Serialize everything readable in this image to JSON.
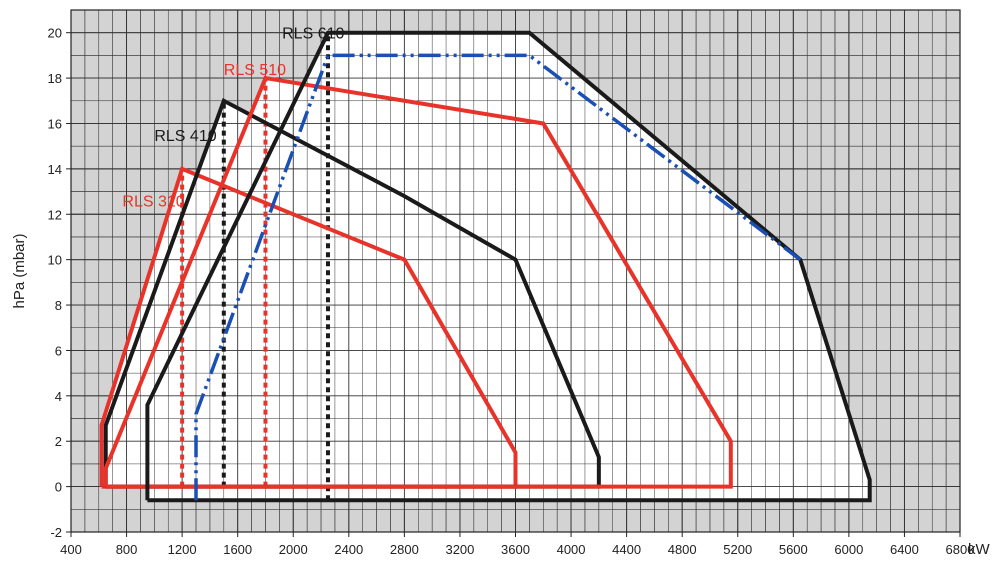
{
  "chart_data": {
    "type": "line",
    "title": "",
    "xlabel": "kW",
    "ylabel": "hPa (mbar)",
    "xlim": [
      400,
      6800
    ],
    "ylim": [
      -2,
      21
    ],
    "x_ticks": [
      400,
      800,
      1200,
      1600,
      2000,
      2400,
      2800,
      3200,
      3600,
      4000,
      4400,
      4800,
      5200,
      5600,
      6000,
      6400,
      6800
    ],
    "y_ticks": [
      -2,
      0,
      2,
      4,
      6,
      8,
      10,
      12,
      14,
      16,
      18,
      20
    ],
    "grid": true,
    "background_color": "#d3d3d3",
    "series": [
      {
        "name": "RLS 310",
        "color": "#e8332a",
        "points": [
          [
            620,
            0
          ],
          [
            620,
            2.7
          ],
          [
            1200,
            14
          ],
          [
            2800,
            10
          ],
          [
            3600,
            1.5
          ],
          [
            3600,
            0
          ],
          [
            620,
            0
          ]
        ],
        "min_output_line": {
          "x": 1200,
          "y": [
            0,
            14
          ],
          "color": "#e8332a"
        }
      },
      {
        "name": "RLS 410",
        "color": "#1a1a1a",
        "points": [
          [
            650,
            0
          ],
          [
            650,
            2.7
          ],
          [
            1500,
            17
          ],
          [
            2800,
            12.8
          ],
          [
            3600,
            10
          ],
          [
            4200,
            1.3
          ],
          [
            4200,
            0
          ],
          [
            650,
            0
          ]
        ],
        "min_output_line": {
          "x": 1500,
          "y": [
            0,
            17
          ],
          "color": "#1a1a1a"
        }
      },
      {
        "name": "RLS 510",
        "color": "#e8332a",
        "points": [
          [
            650,
            0
          ],
          [
            650,
            0.8
          ],
          [
            1800,
            18
          ],
          [
            3800,
            16
          ],
          [
            5150,
            2
          ],
          [
            5150,
            0
          ],
          [
            650,
            0
          ]
        ],
        "min_output_line": {
          "x": 1800,
          "y": [
            0,
            18
          ],
          "color": "#e8332a"
        }
      },
      {
        "name": "RLS 610",
        "color": "#1a1a1a",
        "points": [
          [
            950,
            -0.6
          ],
          [
            950,
            3.6
          ],
          [
            2250,
            20
          ],
          [
            3700,
            20
          ],
          [
            5650,
            10
          ],
          [
            6150,
            0.3
          ],
          [
            6150,
            -0.6
          ],
          [
            950,
            -0.6
          ]
        ],
        "min_output_line": {
          "x": 2250,
          "y": [
            -0.6,
            20
          ],
          "color": "#1a1a1a"
        }
      },
      {
        "name": "",
        "color": "#1a4fb5",
        "dashed": true,
        "points": [
          [
            1300,
            -0.6
          ],
          [
            1300,
            3.2
          ],
          [
            2250,
            19
          ],
          [
            3700,
            19
          ],
          [
            5650,
            10
          ]
        ]
      }
    ],
    "annotations": [
      {
        "text": "RLS 310",
        "x": 770,
        "y": 12.6,
        "color": "#e8332a"
      },
      {
        "text": "RLS 410",
        "x": 1000,
        "y": 15.5,
        "color": "#1a1a1a"
      },
      {
        "text": "RLS 510",
        "x": 1500,
        "y": 18.4,
        "color": "#e8332a"
      },
      {
        "text": "RLS 610",
        "x": 1920,
        "y": 20,
        "color": "#1a1a1a"
      }
    ]
  }
}
